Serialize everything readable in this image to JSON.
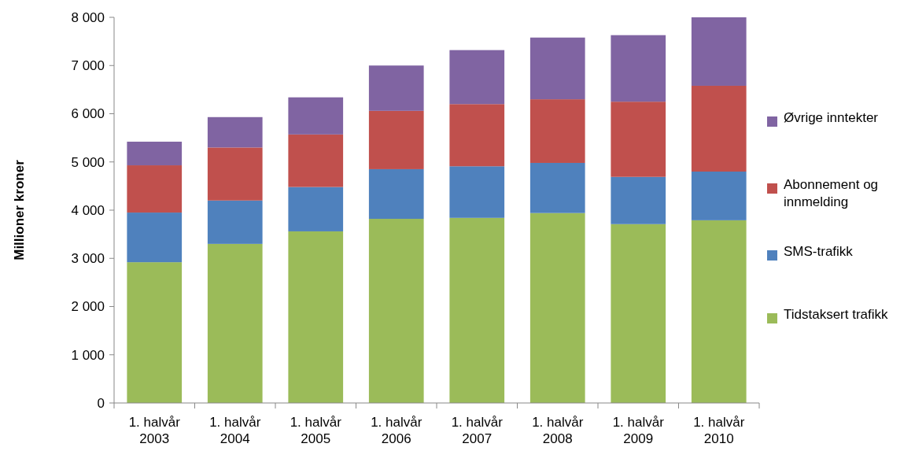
{
  "chart_data": {
    "type": "bar",
    "stacked": true,
    "ylabel": "Millioner kroner",
    "categories": [
      "1. halvår 2003",
      "1. halvår 2004",
      "1. halvår 2005",
      "1. halvår 2006",
      "1. halvår 2007",
      "1. halvår 2008",
      "1. halvår 2009",
      "1. halvår 2010"
    ],
    "series": [
      {
        "name": "Tidstaksert trafikk",
        "color": "#9bbb59",
        "values": [
          2920,
          3300,
          3560,
          3820,
          3840,
          3940,
          3710,
          3790
        ]
      },
      {
        "name": "SMS-trafikk",
        "color": "#4f81bd",
        "values": [
          1030,
          900,
          920,
          1030,
          1070,
          1040,
          980,
          1010
        ]
      },
      {
        "name": "Abonnement og innmelding",
        "color": "#c0504d",
        "values": [
          980,
          1100,
          1090,
          1210,
          1290,
          1320,
          1560,
          1780
        ]
      },
      {
        "name": "Øvrige inntekter",
        "color": "#8064a2",
        "values": [
          490,
          630,
          770,
          940,
          1120,
          1280,
          1380,
          1420
        ]
      }
    ],
    "ylim": [
      0,
      8000
    ],
    "yticks": [
      {
        "value": 0,
        "label": "0"
      },
      {
        "value": 1000,
        "label": "1 000"
      },
      {
        "value": 2000,
        "label": "2 000"
      },
      {
        "value": 3000,
        "label": "3 000"
      },
      {
        "value": 4000,
        "label": "4 000"
      },
      {
        "value": 5000,
        "label": "5 000"
      },
      {
        "value": 6000,
        "label": "6 000"
      },
      {
        "value": 7000,
        "label": "7 000"
      },
      {
        "value": 8000,
        "label": "8 000"
      }
    ],
    "grid": false,
    "legend": "right"
  }
}
